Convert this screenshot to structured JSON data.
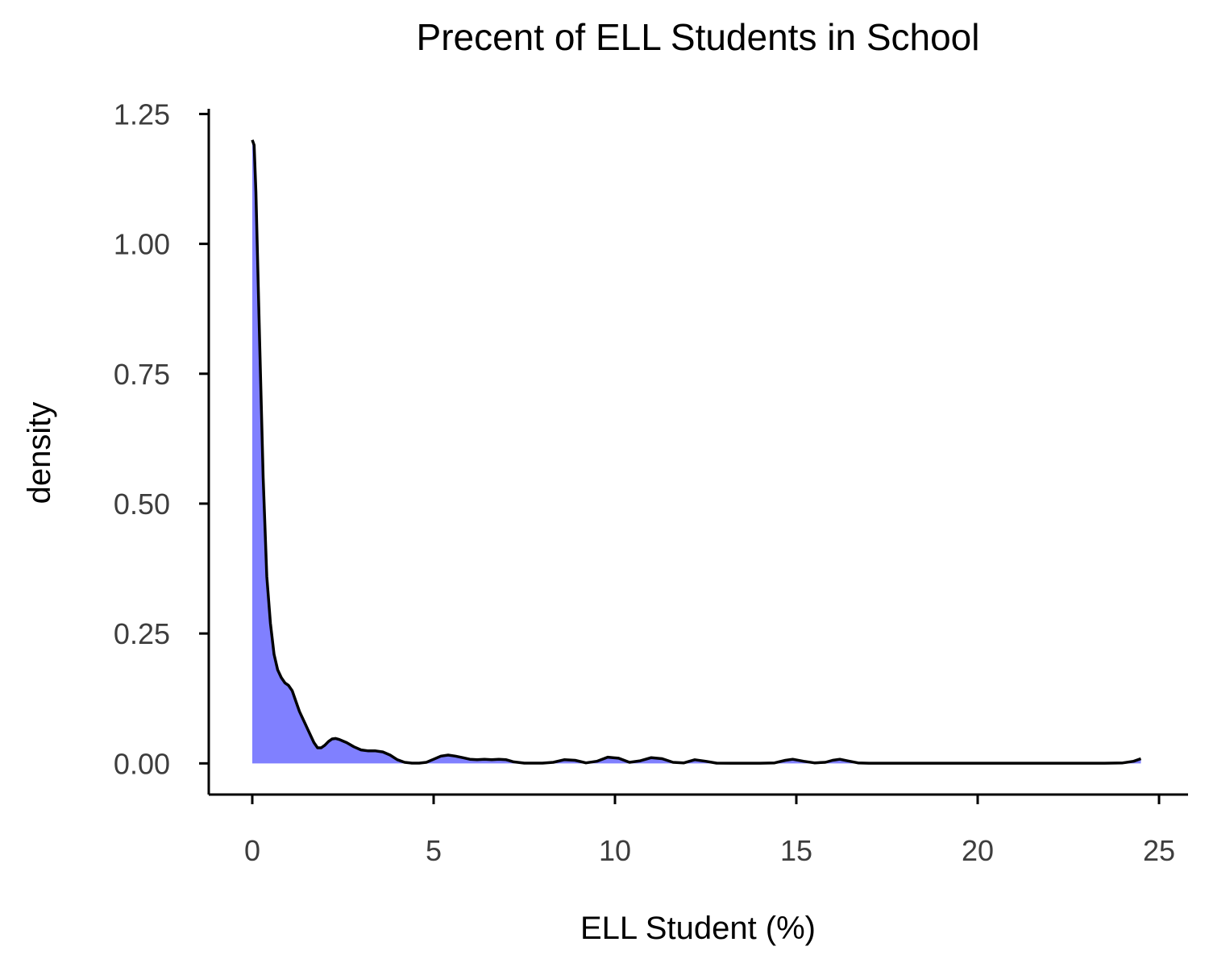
{
  "chart_data": {
    "type": "area",
    "title": "Precent of ELL Students in School",
    "xlabel": "ELL Student (%)",
    "ylabel": "density",
    "xlim": [
      -1.2,
      25.8
    ],
    "ylim": [
      -0.06,
      1.26
    ],
    "x_ticks": [
      0,
      5,
      10,
      15,
      20,
      25
    ],
    "x_tick_labels": [
      "0",
      "5",
      "10",
      "15",
      "20",
      "25"
    ],
    "y_ticks": [
      0,
      0.25,
      0.5,
      0.75,
      1.0,
      1.25
    ],
    "y_tick_labels": [
      "0.00",
      "0.25",
      "0.50",
      "0.75",
      "1.00",
      "1.25"
    ],
    "grid": false,
    "legend": "none",
    "fill_color": "#8080ff",
    "line_color": "#000000",
    "series": [
      {
        "x": [
          0,
          0.05,
          0.1,
          0.2,
          0.3,
          0.4,
          0.5,
          0.6,
          0.7,
          0.8,
          0.9,
          1.0,
          1.1,
          1.2,
          1.3,
          1.4,
          1.5,
          1.6,
          1.7,
          1.8,
          1.9,
          2.0,
          2.1,
          2.2,
          2.3,
          2.4,
          2.5,
          2.6,
          2.8,
          3.0,
          3.2,
          3.4,
          3.6,
          3.8,
          4.0,
          4.2,
          4.4,
          4.6,
          4.8,
          5.0,
          5.2,
          5.4,
          5.6,
          5.8,
          6.0,
          6.2,
          6.4,
          6.6,
          6.8,
          7.0,
          7.2,
          7.5,
          8.0,
          8.3,
          8.6,
          8.9,
          9.2,
          9.5,
          9.8,
          10.1,
          10.4,
          10.7,
          11.0,
          11.3,
          11.6,
          11.9,
          12.2,
          12.5,
          12.8,
          13.2,
          13.6,
          14.0,
          14.4,
          14.7,
          14.9,
          15.2,
          15.5,
          15.8,
          16.0,
          16.2,
          16.4,
          16.7,
          17.0,
          18.0,
          20.0,
          22.0,
          23.5,
          24.0,
          24.3,
          24.5
        ],
        "y": [
          1.2,
          1.19,
          1.1,
          0.82,
          0.55,
          0.36,
          0.27,
          0.21,
          0.18,
          0.165,
          0.155,
          0.15,
          0.14,
          0.12,
          0.1,
          0.085,
          0.07,
          0.055,
          0.04,
          0.03,
          0.03,
          0.035,
          0.042,
          0.047,
          0.048,
          0.046,
          0.043,
          0.04,
          0.032,
          0.026,
          0.024,
          0.024,
          0.022,
          0.016,
          0.007,
          0.002,
          0.0005,
          0.0005,
          0.002,
          0.008,
          0.014,
          0.016,
          0.014,
          0.011,
          0.008,
          0.007,
          0.008,
          0.007,
          0.008,
          0.007,
          0.003,
          0.0005,
          0.0005,
          0.002,
          0.007,
          0.006,
          0.001,
          0.004,
          0.012,
          0.01,
          0.002,
          0.005,
          0.011,
          0.009,
          0.002,
          0.001,
          0.007,
          0.004,
          0.0005,
          0.0003,
          0.0003,
          0.0003,
          0.001,
          0.006,
          0.008,
          0.004,
          0.001,
          0.002,
          0.006,
          0.008,
          0.005,
          0.001,
          0.0003,
          0.0003,
          0.0003,
          0.0003,
          0.0003,
          0.001,
          0.004,
          0.009
        ]
      }
    ]
  }
}
